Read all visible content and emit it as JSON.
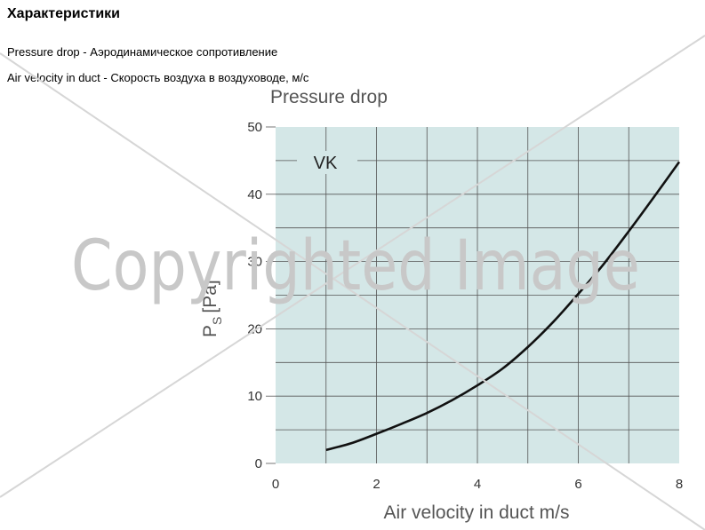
{
  "page": {
    "heading": "Характеристики",
    "line1": "Pressure drop - Аэродинамическое сопротивление",
    "line2": "Air velocity in duct - Скорость воздуха в воздуховоде, м/с"
  },
  "watermark": "Copyrighted Image",
  "colors": {
    "plot_background": "#d4e7e7",
    "grid": "#555555",
    "curve": "#111111",
    "watermark": "#c8c8c8"
  },
  "chart_data": {
    "type": "line",
    "title": "Pressure drop",
    "xlabel": "Air velocity in duct m/s",
    "ylabel_main": "P",
    "ylabel_sub": "S",
    "ylabel_unit": "[Pa]",
    "xlim": [
      0,
      8
    ],
    "ylim": [
      0,
      50
    ],
    "xticks": [
      "0",
      "2",
      "4",
      "6",
      "8"
    ],
    "yticks": [
      "0",
      "10",
      "20",
      "30",
      "40",
      "50"
    ],
    "grid": true,
    "series": [
      {
        "name": "VK",
        "x": [
          1.0,
          1.5,
          2.0,
          2.5,
          3.0,
          3.5,
          4.0,
          4.5,
          5.0,
          5.5,
          6.0,
          6.5,
          7.0,
          7.5,
          8.0
        ],
        "values": [
          2.0,
          3.0,
          4.4,
          5.9,
          7.5,
          9.4,
          11.6,
          14.1,
          17.3,
          21.0,
          25.2,
          29.6,
          34.5,
          39.6,
          44.8
        ]
      }
    ]
  }
}
